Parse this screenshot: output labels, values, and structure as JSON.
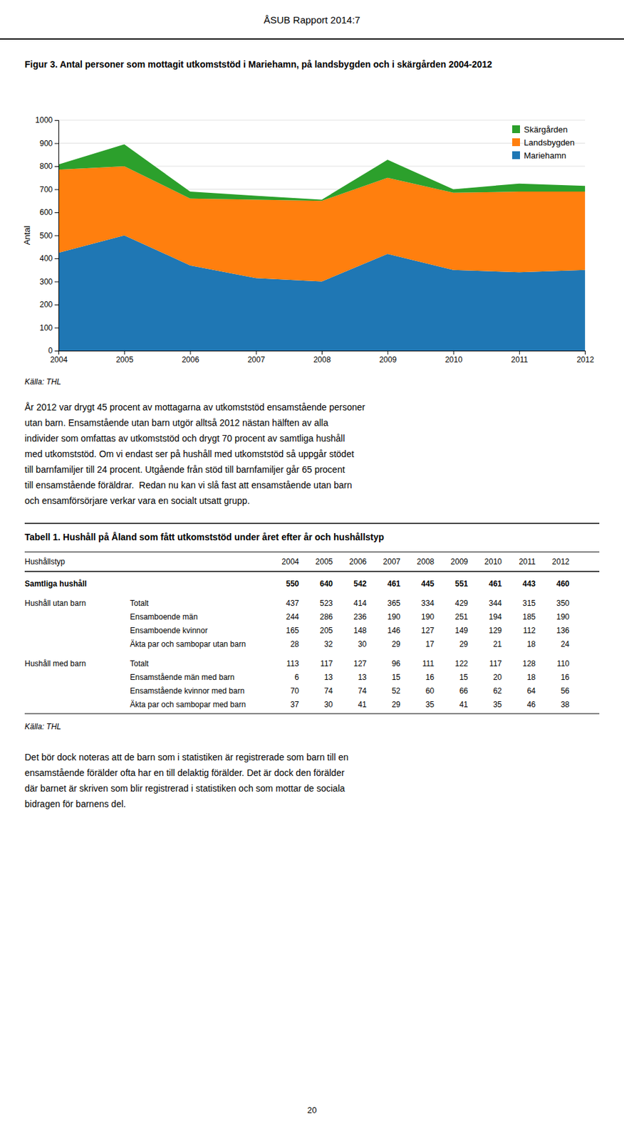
{
  "header": "ÅSUB Rapport 2014:7",
  "chart_data": {
    "type": "area",
    "stacked": true,
    "title": "Figur 3. Antal personer som mottagit utkomststöd i Mariehamn, på landsbygden och i skärgården 2004-2012",
    "ylabel": "Antal",
    "x": [
      2004,
      2005,
      2006,
      2007,
      2008,
      2009,
      2010,
      2011,
      2012
    ],
    "xlim": [
      2004,
      2012
    ],
    "xticks": [
      2004,
      2005,
      2006,
      2007,
      2008,
      2009,
      2010,
      2011,
      2012
    ],
    "ylim": [
      0,
      1000
    ],
    "yticks": [
      0,
      100,
      200,
      300,
      400,
      500,
      600,
      700,
      800,
      900,
      1000
    ],
    "grid": true,
    "legend": "upper right",
    "series": [
      {
        "name": "Mariehamn",
        "values": [
          425,
          500,
          370,
          315,
          300,
          420,
          350,
          340,
          350
        ]
      },
      {
        "name": "Landsbygden",
        "values": [
          360,
          300,
          290,
          340,
          350,
          330,
          335,
          350,
          340
        ]
      },
      {
        "name": "Skärgården",
        "values": [
          23,
          95,
          30,
          17,
          5,
          78,
          15,
          35,
          25
        ]
      }
    ]
  },
  "chart_source": "Källa: THL",
  "body": [
    "År 2012 var drygt 45 procent av mottagarna av utkomststöd ensamstående personer",
    "utan barn. Ensamstående utan barn utgör alltså 2012 nästan hälften av alla",
    "individer som omfattas av utkomststöd och drygt 70 procent av samtliga hushåll",
    "med utkomststöd. Om vi endast ser på hushåll med utkomststöd så uppgår stödet",
    "till barnfamiljer till 24 procent. Utgående från stöd till barnfamiljer går 65 procent",
    "till ensamstående föräldrar.  Redan nu kan vi slå fast att ensamstående utan barn",
    "och ensamförsörjare verkar vara en socialt utsatt grupp."
  ],
  "table": {
    "title": "Tabell 1. Hushåll på Åland som fått utkomststöd under året efter år och hushållstyp",
    "row_header": "Hushållstyp",
    "columns": [
      "2004",
      "2005",
      "2006",
      "2007",
      "2008",
      "2009",
      "2010",
      "2011",
      "2012"
    ],
    "rows": [
      {
        "category": "Samtliga hushåll",
        "values": [
          550,
          640,
          542,
          461,
          445,
          551,
          461,
          443,
          460
        ]
      },
      {
        "category": "Hushåll utan barn",
        "subcategory": "Totalt",
        "values": [
          437,
          523,
          414,
          365,
          334,
          429,
          344,
          315,
          350
        ]
      },
      {
        "subcategory": "Ensamboende män",
        "values": [
          244,
          286,
          236,
          190,
          190,
          251,
          194,
          185,
          190
        ]
      },
      {
        "subcategory": "Ensamboende kvinnor",
        "values": [
          165,
          205,
          148,
          146,
          127,
          149,
          129,
          112,
          136
        ]
      },
      {
        "subcategory": "Äkta par och sambopar utan barn",
        "values": [
          28,
          32,
          30,
          29,
          17,
          29,
          21,
          18,
          24
        ]
      },
      {
        "category": "Hushåll med barn",
        "subcategory": "Totalt",
        "values": [
          113,
          117,
          127,
          96,
          111,
          122,
          117,
          128,
          110
        ]
      },
      {
        "subcategory": "Ensamstående män med barn",
        "values": [
          6,
          13,
          13,
          15,
          16,
          15,
          20,
          18,
          16
        ]
      },
      {
        "subcategory": "Ensamstående kvinnor med barn",
        "values": [
          70,
          74,
          74,
          52,
          60,
          66,
          62,
          64,
          56
        ]
      },
      {
        "subcategory": "Äkta par och sambopar med barn",
        "values": [
          37,
          30,
          41,
          29,
          35,
          41,
          35,
          46,
          38
        ]
      }
    ],
    "source": "Källa: THL"
  },
  "footer": [
    "Det bör dock noteras att de barn som i statistiken är registrerade som barn till en",
    "ensamstående förälder ofta har en till delaktig förälder. Det är dock den förälder",
    "där barnet är skriven som blir registrerad i statistiken och som mottar de sociala",
    "bidragen för barnens del."
  ],
  "page_number": "20"
}
